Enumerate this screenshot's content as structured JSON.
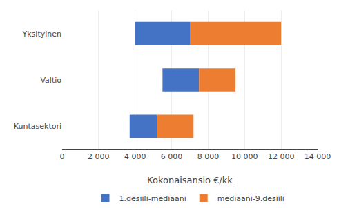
{
  "chart_data": {
    "type": "bar",
    "orientation": "horizontal",
    "categories": [
      "Yksityinen",
      "Valtio",
      "Kuntasektori"
    ],
    "series": [
      {
        "name": "1.desiili-mediaani",
        "color": "#4472C4",
        "base": [
          4000,
          5500,
          3700
        ],
        "values": [
          3000,
          2000,
          1500
        ]
      },
      {
        "name": "mediaani-9.desiili",
        "color": "#ED7D31",
        "base": [
          7000,
          7500,
          5200
        ],
        "values": [
          5000,
          2000,
          2000
        ]
      }
    ],
    "xlabel": "Kokonaisansio €/kk",
    "xlim": [
      0,
      14000
    ],
    "xticks": [
      0,
      {
        "value": 2000,
        "label": "2 000"
      },
      {
        "value": 4000,
        "label": "4 000"
      },
      {
        "value": 6000,
        "label": "6 000"
      },
      {
        "value": 8000,
        "label": "8 000"
      },
      {
        "value": 10000,
        "label": "10 000"
      },
      {
        "value": 12000,
        "label": "12 000"
      },
      {
        "value": 14000,
        "label": "14 000"
      }
    ],
    "grid": true,
    "legend": "bottom"
  }
}
